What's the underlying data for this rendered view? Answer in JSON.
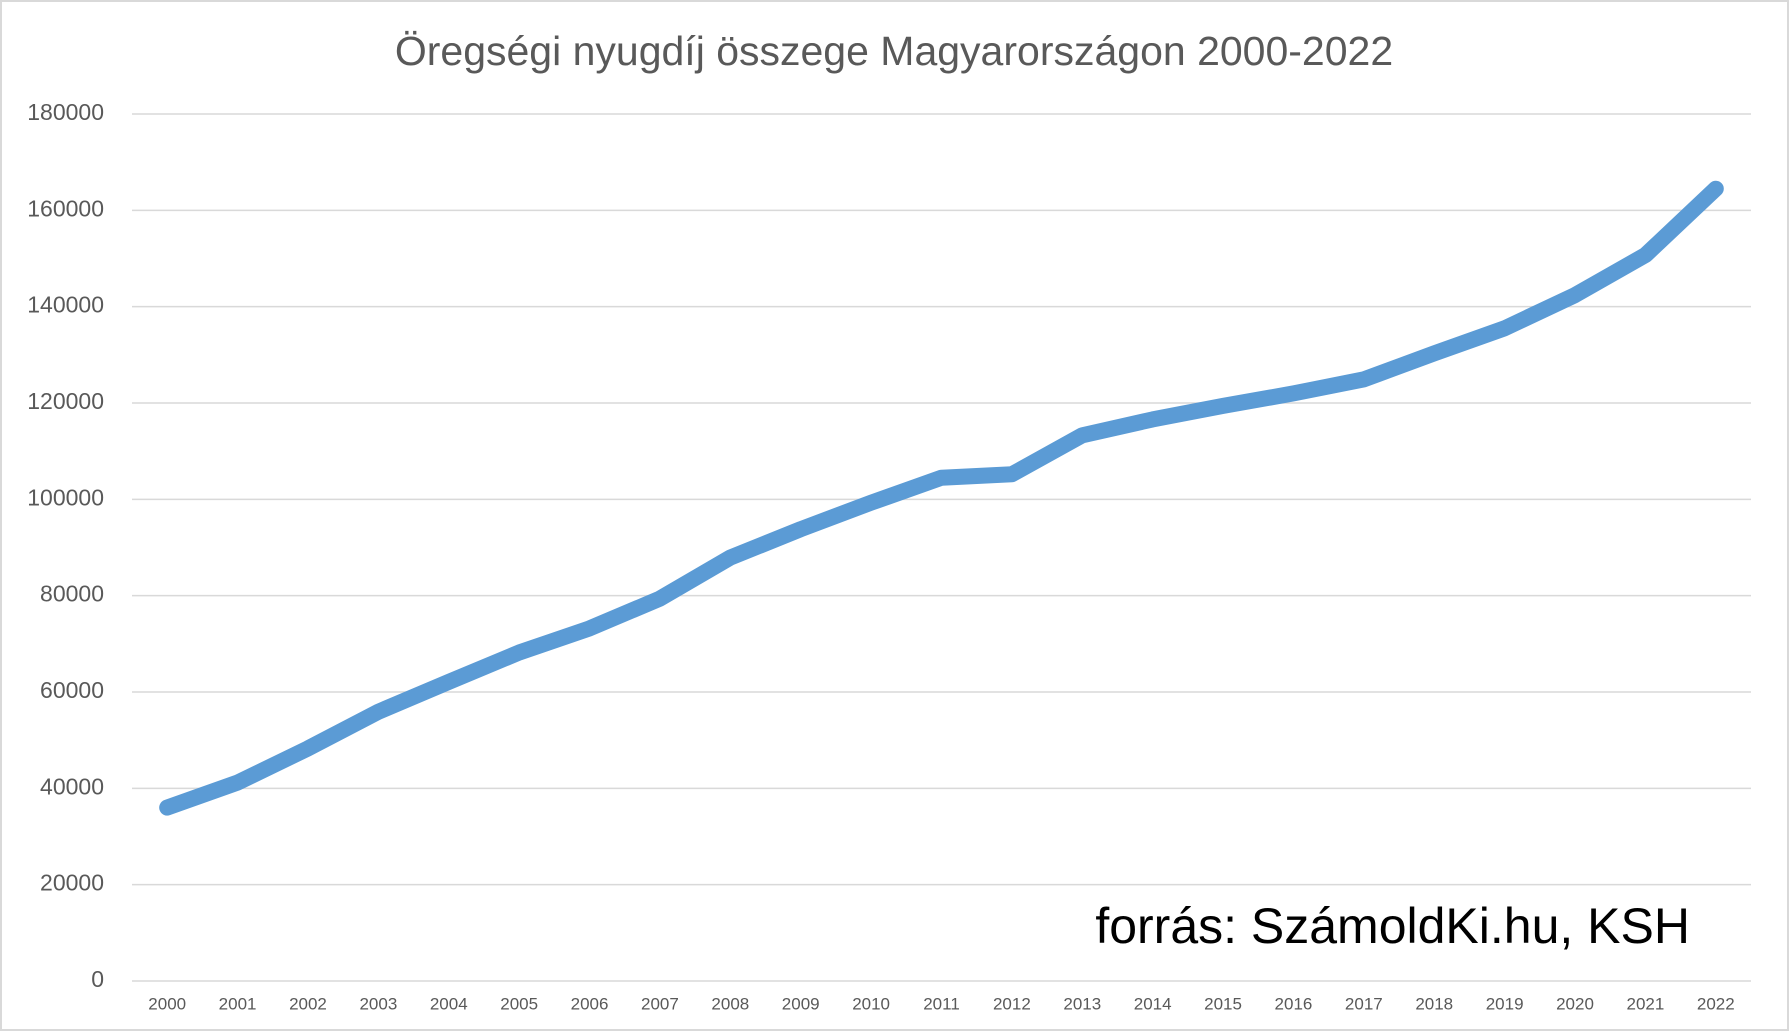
{
  "chart_data": {
    "type": "line",
    "title": "Öregségi nyugdíj összege Magyarországon 2000-2022",
    "annotation": "forrás: SzámoldKi.hu, KSH",
    "categories": [
      "2000",
      "2001",
      "2002",
      "2003",
      "2004",
      "2005",
      "2006",
      "2007",
      "2008",
      "2009",
      "2010",
      "2011",
      "2012",
      "2013",
      "2014",
      "2015",
      "2016",
      "2017",
      "2018",
      "2019",
      "2020",
      "2021",
      "2022"
    ],
    "values": [
      36000,
      41200,
      48300,
      55900,
      62100,
      68200,
      73200,
      79400,
      87900,
      93800,
      99300,
      104500,
      105200,
      113300,
      116600,
      119400,
      122000,
      124900,
      130300,
      135500,
      142400,
      150700,
      164500
    ],
    "color": "#5b9bd5",
    "ylim": [
      0,
      180000
    ],
    "yticks": [
      0,
      20000,
      40000,
      60000,
      80000,
      100000,
      120000,
      140000,
      160000,
      180000
    ],
    "grid": true
  }
}
